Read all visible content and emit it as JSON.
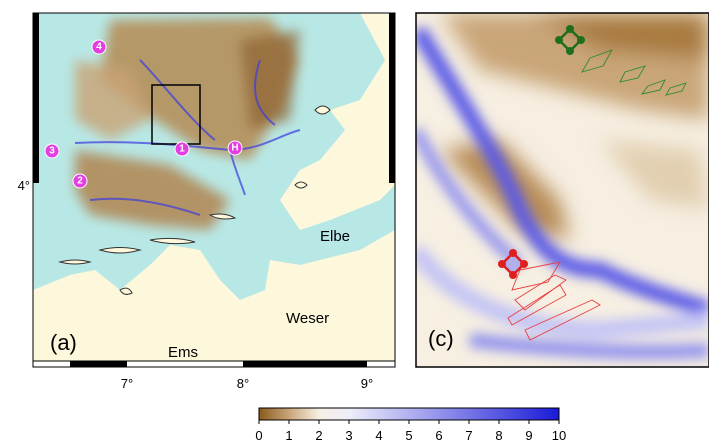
{
  "panel_a": {
    "label": "(a)",
    "markers": [
      "4",
      "3",
      "2",
      "1",
      "H"
    ],
    "places": [
      "Elbe",
      "Weser",
      "Ems"
    ],
    "x_ticks": [
      "7°",
      "8°",
      "9°"
    ],
    "y_tick": "4°"
  },
  "panel_c": {
    "label": "(c)"
  },
  "colorbar": {
    "ticks": [
      0,
      1,
      2,
      3,
      4,
      5,
      6,
      7,
      8,
      9,
      10
    ]
  }
}
